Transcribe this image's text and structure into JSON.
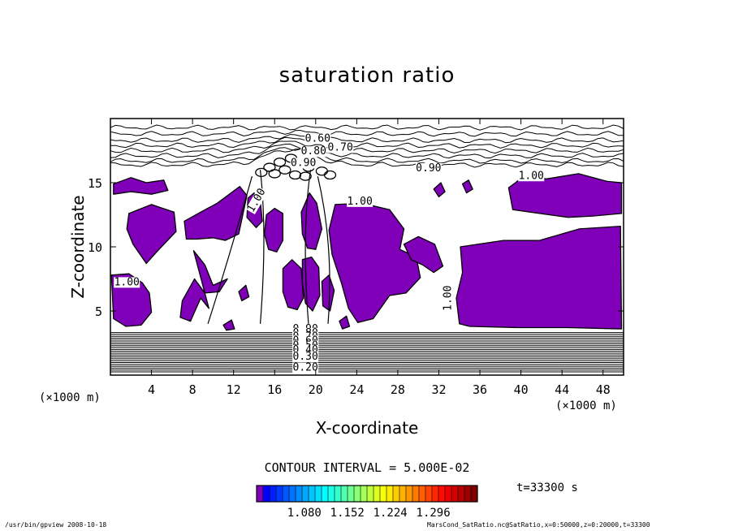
{
  "chart_data": {
    "type": "heatmap",
    "title": "saturation ratio",
    "xlabel": "X-coordinate",
    "ylabel": "Z-coordinate",
    "x_unit_label": "(×1000 m)",
    "xlim": [
      0,
      50
    ],
    "ylim": [
      0,
      20
    ],
    "x_ticks": [
      4,
      8,
      12,
      16,
      20,
      24,
      28,
      32,
      36,
      40,
      44,
      48
    ],
    "y_ticks": [
      5,
      10,
      15
    ],
    "contour_interval_text": "CONTOUR INTERVAL = 5.000E-02",
    "contour_labels": [
      "0.60",
      "0.70",
      "0.80",
      "0.90",
      "0.90",
      "1.00",
      "1.00",
      "1.00",
      "1.00",
      "1.00",
      "0.90",
      "0.80",
      "0.70",
      "0.60",
      "0.50",
      "0.40",
      "0.30",
      "0.20"
    ],
    "colorbar": {
      "tick_labels": [
        "1.080",
        "1.152",
        "1.224",
        "1.296"
      ],
      "range": [
        1.0,
        1.37
      ]
    },
    "fill_color": "#7f00b8",
    "time_label": "t=33300 s"
  },
  "footer": {
    "left": "/usr/bin/gpview   2008-10-18",
    "right": "MarsCond_SatRatio.nc@SatRatio,x=0:50000,z=0:20000,t=33300"
  }
}
